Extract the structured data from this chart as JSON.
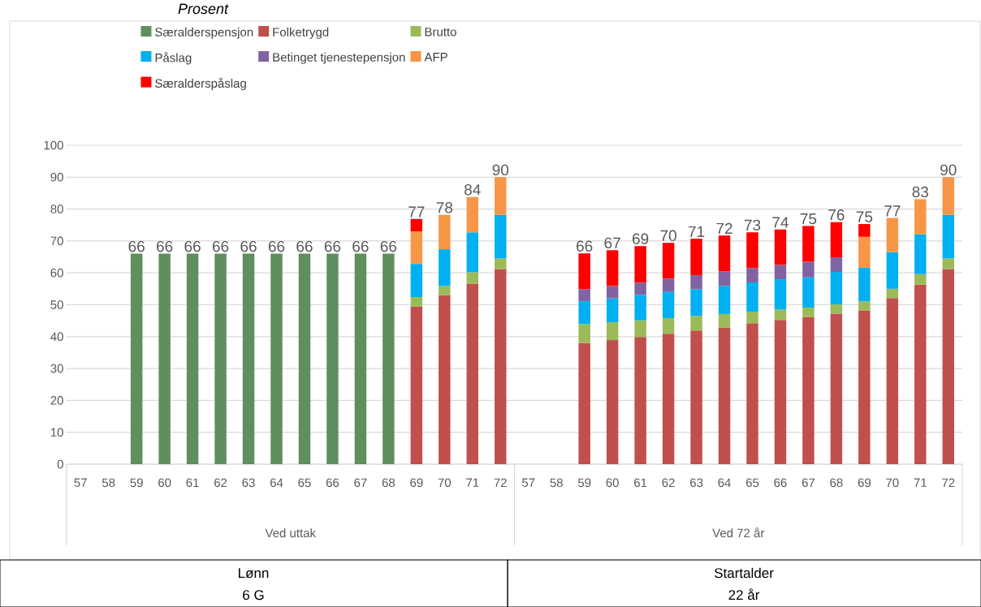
{
  "chart_data": {
    "type": "bar",
    "stacked": true,
    "title": "Prosent",
    "categories": [
      "57",
      "58",
      "59",
      "60",
      "61",
      "62",
      "63",
      "64",
      "65",
      "66",
      "67",
      "68",
      "69",
      "70",
      "71",
      "72",
      "57",
      "58",
      "59",
      "60",
      "61",
      "62",
      "63",
      "64",
      "65",
      "66",
      "67",
      "68",
      "69",
      "70",
      "71",
      "72"
    ],
    "series": [
      {
        "name": "Særalderspensjon",
        "color": "#5f8f5f",
        "values": [
          null,
          null,
          66,
          66,
          66,
          66,
          66,
          66,
          66,
          66,
          66,
          66,
          null,
          null,
          null,
          null,
          null,
          null,
          null,
          null,
          null,
          null,
          null,
          null,
          null,
          null,
          null,
          null,
          null,
          null,
          null,
          null
        ]
      },
      {
        "name": "Folketrygd",
        "color": "#c0504d",
        "values": [
          null,
          null,
          null,
          null,
          null,
          null,
          null,
          null,
          null,
          null,
          null,
          null,
          49.4,
          53.0,
          56.6,
          61.2,
          null,
          null,
          38.0,
          38.9,
          39.9,
          40.9,
          41.9,
          42.8,
          44.2,
          45.2,
          46.2,
          47.2,
          48.2,
          52.1,
          56.3,
          61.2
        ]
      },
      {
        "name": "Brutto",
        "color": "#9bbb59",
        "values": [
          null,
          null,
          null,
          null,
          null,
          null,
          null,
          null,
          null,
          null,
          null,
          null,
          3.0,
          2.9,
          3.6,
          3.3,
          null,
          null,
          5.9,
          5.6,
          5.2,
          4.9,
          4.6,
          4.3,
          3.6,
          3.3,
          2.9,
          2.9,
          2.9,
          2.9,
          3.3,
          3.3
        ]
      },
      {
        "name": "Påslag",
        "color": "#00b0f0",
        "values": [
          null,
          null,
          null,
          null,
          null,
          null,
          null,
          null,
          null,
          null,
          null,
          null,
          10.4,
          11.5,
          12.5,
          13.7,
          null,
          null,
          7.2,
          7.5,
          8.0,
          8.2,
          8.4,
          8.8,
          9.2,
          9.5,
          9.5,
          10.2,
          10.5,
          11.5,
          12.5,
          13.7
        ]
      },
      {
        "name": "Betinget tjenestepensjon",
        "color": "#8064a2",
        "values": [
          null,
          null,
          null,
          null,
          null,
          null,
          null,
          null,
          null,
          null,
          null,
          null,
          null,
          null,
          null,
          null,
          null,
          null,
          3.8,
          3.9,
          3.8,
          4.2,
          4.4,
          4.6,
          4.5,
          4.5,
          4.9,
          4.6,
          null,
          null,
          null,
          null
        ]
      },
      {
        "name": "AFP",
        "color": "#f79646",
        "values": [
          null,
          null,
          null,
          null,
          null,
          null,
          null,
          null,
          null,
          null,
          null,
          null,
          10.2,
          10.8,
          11.1,
          11.8,
          null,
          null,
          null,
          null,
          null,
          null,
          null,
          null,
          null,
          null,
          null,
          null,
          9.7,
          10.7,
          11.0,
          11.8
        ]
      },
      {
        "name": "Særalderspåslag",
        "color": "#ff0000",
        "values": [
          null,
          null,
          null,
          null,
          null,
          null,
          null,
          null,
          null,
          null,
          null,
          null,
          3.9,
          null,
          null,
          null,
          null,
          null,
          11.2,
          11.2,
          11.5,
          11.2,
          11.4,
          11.2,
          11.2,
          11.1,
          11.2,
          11.0,
          4.0,
          null,
          null,
          null
        ]
      }
    ],
    "totals": [
      null,
      null,
      "66",
      "66",
      "66",
      "66",
      "66",
      "66",
      "66",
      "66",
      "66",
      "66",
      "77",
      "78",
      "84",
      "90",
      null,
      null,
      "66",
      "67",
      "69",
      "70",
      "71",
      "72",
      "73",
      "74",
      "75",
      "76",
      "75",
      "77",
      "83",
      "90"
    ],
    "ylim": [
      0,
      100
    ],
    "yticks": [
      0,
      10,
      20,
      30,
      40,
      50,
      60,
      70,
      80,
      90,
      100
    ],
    "grid": "y",
    "legend": "top",
    "annotations": [
      "Ved uttak",
      "Ved 72 år",
      "Lønn",
      "6 G",
      "Startalder",
      "22 år"
    ]
  }
}
